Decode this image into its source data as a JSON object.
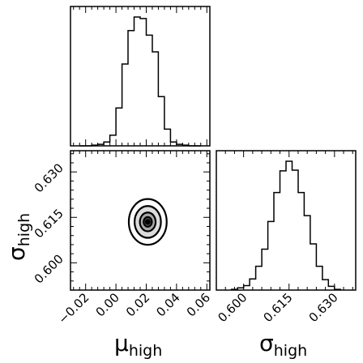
{
  "chart_data": [
    {
      "type": "histogram",
      "panel": "top-left",
      "xlim": [
        -0.03,
        0.062
      ],
      "bin_edges": [
        -0.024,
        -0.02,
        -0.016,
        -0.012,
        -0.008,
        -0.004,
        0.0,
        0.004,
        0.008,
        0.012,
        0.016,
        0.02,
        0.024,
        0.028,
        0.032,
        0.036,
        0.04,
        0.044,
        0.048,
        0.052,
        0.056
      ],
      "counts": [
        0,
        0,
        1,
        2,
        5,
        14,
        50,
        108,
        152,
        170,
        168,
        146,
        124,
        65,
        22,
        5,
        2,
        1,
        0,
        0
      ],
      "x_ticks": [
        -0.02,
        0.0,
        0.02,
        0.04,
        0.06
      ],
      "y_ticks": []
    },
    {
      "type": "contour",
      "panel": "bottom-left",
      "xlim": [
        -0.03,
        0.062
      ],
      "ylim": [
        0.591,
        0.637
      ],
      "center": {
        "x": 0.021,
        "y": 0.6135
      },
      "levels": [
        {
          "sx": 0.0125,
          "sy": 0.00755,
          "fill": "#ffffff"
        },
        {
          "sx": 0.0087,
          "sy": 0.00525,
          "fill": "#dcdcdc"
        },
        {
          "sx": 0.0052,
          "sy": 0.0031,
          "fill": "#a8a8a8"
        },
        {
          "sx": 0.0027,
          "sy": 0.0016,
          "fill": "#555555"
        }
      ],
      "x_ticks": [
        -0.02,
        0.0,
        0.02,
        0.04,
        0.06
      ],
      "x_tick_labels": [
        "−0.02",
        "0.00",
        "0.02",
        "0.04",
        "0.06"
      ],
      "y_ticks": [
        0.6,
        0.615,
        0.63
      ],
      "y_tick_labels": [
        "0.600",
        "0.615",
        "0.630"
      ],
      "xlabel": "μ",
      "xlabel_sub": "high",
      "ylabel": "σ",
      "ylabel_sub": "high"
    },
    {
      "type": "histogram",
      "panel": "bottom-right",
      "xlim": [
        0.591,
        0.637
      ],
      "bin_edges": [
        0.596,
        0.598,
        0.6,
        0.602,
        0.604,
        0.606,
        0.608,
        0.61,
        0.612,
        0.614,
        0.616,
        0.618,
        0.62,
        0.622,
        0.624,
        0.626,
        0.628,
        0.63,
        0.632
      ],
      "counts": [
        1,
        3,
        6,
        15,
        32,
        55,
        92,
        131,
        160,
        173,
        161,
        131,
        100,
        62,
        32,
        14,
        5,
        1
      ],
      "x_ticks": [
        0.6,
        0.615,
        0.63
      ],
      "x_tick_labels": [
        "0.600",
        "0.615",
        "0.630"
      ],
      "y_ticks": [],
      "xlabel": "σ",
      "xlabel_sub": "high"
    }
  ]
}
